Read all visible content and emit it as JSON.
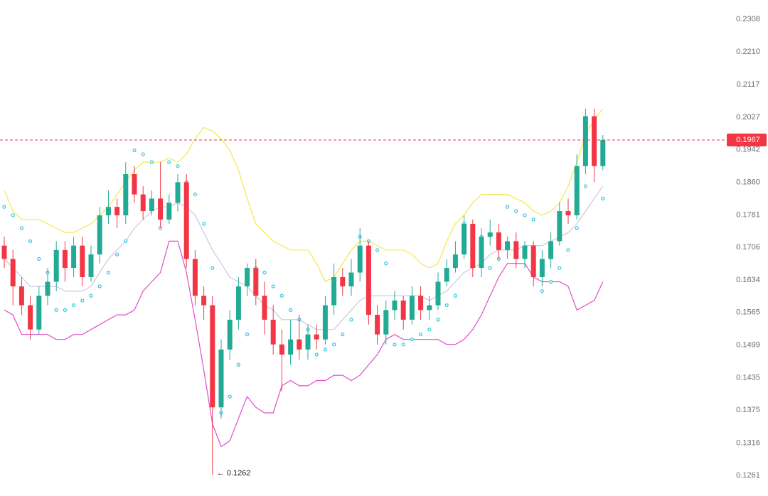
{
  "chart_data": {
    "type": "candlestick",
    "log_scale": true,
    "grid": false,
    "up_color": "#22ab94",
    "down_color": "#f23645",
    "open": [
      0.171,
      0.168,
      0.162,
      0.158,
      0.153,
      0.16,
      0.163,
      0.17,
      0.166,
      0.171,
      0.164,
      0.169,
      0.178,
      0.18,
      0.178,
      0.188,
      0.183,
      0.179,
      0.182,
      0.177,
      0.181,
      0.186,
      0.168,
      0.16,
      0.158,
      0.138,
      0.149,
      0.155,
      0.162,
      0.166,
      0.16,
      0.155,
      0.15,
      0.148,
      0.151,
      0.149,
      0.152,
      0.151,
      0.158,
      0.164,
      0.162,
      0.165,
      0.171,
      0.156,
      0.152,
      0.157,
      0.159,
      0.155,
      0.16,
      0.157,
      0.158,
      0.163,
      0.166,
      0.169,
      0.176,
      0.166,
      0.173,
      0.174,
      0.17,
      0.172,
      0.168,
      0.171,
      0.164,
      0.168,
      0.172,
      0.179,
      0.178,
      0.19,
      0.203,
      0.19
    ],
    "high": [
      0.173,
      0.17,
      0.164,
      0.16,
      0.162,
      0.166,
      0.172,
      0.172,
      0.173,
      0.173,
      0.171,
      0.18,
      0.184,
      0.182,
      0.191,
      0.19,
      0.185,
      0.184,
      0.191,
      0.183,
      0.188,
      0.188,
      0.17,
      0.162,
      0.16,
      0.151,
      0.157,
      0.164,
      0.167,
      0.168,
      0.163,
      0.158,
      0.153,
      0.155,
      0.156,
      0.154,
      0.154,
      0.16,
      0.167,
      0.166,
      0.168,
      0.175,
      0.172,
      0.158,
      0.159,
      0.161,
      0.16,
      0.162,
      0.162,
      0.16,
      0.165,
      0.168,
      0.172,
      0.178,
      0.177,
      0.175,
      0.177,
      0.176,
      0.173,
      0.174,
      0.172,
      0.172,
      0.17,
      0.174,
      0.181,
      0.182,
      0.193,
      0.205,
      0.205,
      0.198
    ],
    "low": [
      0.166,
      0.158,
      0.156,
      0.151,
      0.152,
      0.158,
      0.161,
      0.163,
      0.164,
      0.162,
      0.163,
      0.167,
      0.176,
      0.175,
      0.176,
      0.181,
      0.177,
      0.178,
      0.175,
      0.176,
      0.179,
      0.166,
      0.158,
      0.155,
      0.1262,
      0.136,
      0.147,
      0.153,
      0.16,
      0.158,
      0.152,
      0.148,
      0.141,
      0.146,
      0.147,
      0.147,
      0.149,
      0.15,
      0.156,
      0.16,
      0.16,
      0.163,
      0.154,
      0.15,
      0.15,
      0.155,
      0.153,
      0.154,
      0.155,
      0.155,
      0.157,
      0.162,
      0.165,
      0.168,
      0.164,
      0.164,
      0.171,
      0.168,
      0.168,
      0.166,
      0.166,
      0.162,
      0.162,
      0.166,
      0.171,
      0.176,
      0.177,
      0.188,
      0.186,
      0.189
    ],
    "close": [
      0.168,
      0.162,
      0.158,
      0.153,
      0.16,
      0.163,
      0.17,
      0.166,
      0.171,
      0.164,
      0.169,
      0.178,
      0.18,
      0.178,
      0.188,
      0.183,
      0.179,
      0.182,
      0.177,
      0.181,
      0.186,
      0.168,
      0.16,
      0.158,
      0.138,
      0.149,
      0.155,
      0.162,
      0.166,
      0.16,
      0.155,
      0.15,
      0.148,
      0.151,
      0.149,
      0.152,
      0.151,
      0.158,
      0.164,
      0.162,
      0.165,
      0.171,
      0.156,
      0.152,
      0.157,
      0.159,
      0.155,
      0.16,
      0.157,
      0.158,
      0.163,
      0.166,
      0.169,
      0.176,
      0.166,
      0.173,
      0.174,
      0.17,
      0.172,
      0.168,
      0.171,
      0.164,
      0.168,
      0.172,
      0.179,
      0.178,
      0.19,
      0.203,
      0.19,
      0.1967
    ],
    "overlays": [
      {
        "style": "line",
        "color": "#f2e84b",
        "values": [
          0.184,
          0.179,
          0.177,
          0.177,
          0.177,
          0.176,
          0.175,
          0.174,
          0.174,
          0.175,
          0.176,
          0.178,
          0.18,
          0.183,
          0.186,
          0.189,
          0.191,
          0.191,
          0.191,
          0.192,
          0.191,
          0.193,
          0.197,
          0.2,
          0.199,
          0.197,
          0.194,
          0.189,
          0.182,
          0.176,
          0.174,
          0.172,
          0.171,
          0.17,
          0.17,
          0.17,
          0.167,
          0.163,
          0.164,
          0.167,
          0.17,
          0.172,
          0.172,
          0.171,
          0.17,
          0.17,
          0.17,
          0.169,
          0.167,
          0.166,
          0.167,
          0.172,
          0.176,
          0.178,
          0.181,
          0.183,
          0.183,
          0.183,
          0.183,
          0.182,
          0.181,
          0.179,
          0.178,
          0.179,
          0.181,
          0.185,
          0.191,
          0.198,
          0.202,
          0.205
        ]
      },
      {
        "style": "line",
        "color": "#cfc6dc",
        "values": [
          0.168,
          0.166,
          0.164,
          0.162,
          0.162,
          0.162,
          0.162,
          0.161,
          0.161,
          0.161,
          0.162,
          0.165,
          0.168,
          0.17,
          0.172,
          0.175,
          0.177,
          0.179,
          0.18,
          0.18,
          0.181,
          0.18,
          0.178,
          0.174,
          0.17,
          0.167,
          0.164,
          0.163,
          0.162,
          0.16,
          0.158,
          0.157,
          0.155,
          0.155,
          0.155,
          0.154,
          0.153,
          0.153,
          0.153,
          0.155,
          0.157,
          0.159,
          0.16,
          0.16,
          0.16,
          0.16,
          0.16,
          0.16,
          0.16,
          0.159,
          0.16,
          0.161,
          0.163,
          0.165,
          0.166,
          0.167,
          0.169,
          0.17,
          0.17,
          0.17,
          0.171,
          0.171,
          0.171,
          0.172,
          0.173,
          0.174,
          0.176,
          0.179,
          0.182,
          0.185
        ]
      },
      {
        "style": "line",
        "color": "#e04ccb",
        "values": [
          0.157,
          0.156,
          0.152,
          0.152,
          0.152,
          0.152,
          0.151,
          0.151,
          0.152,
          0.152,
          0.153,
          0.154,
          0.155,
          0.156,
          0.156,
          0.157,
          0.161,
          0.163,
          0.165,
          0.172,
          0.172,
          0.165,
          0.155,
          0.145,
          0.135,
          0.131,
          0.132,
          0.136,
          0.14,
          0.138,
          0.137,
          0.137,
          0.142,
          0.143,
          0.142,
          0.142,
          0.143,
          0.143,
          0.144,
          0.144,
          0.143,
          0.144,
          0.146,
          0.148,
          0.151,
          0.152,
          0.151,
          0.151,
          0.151,
          0.151,
          0.151,
          0.15,
          0.15,
          0.151,
          0.153,
          0.156,
          0.16,
          0.164,
          0.167,
          0.167,
          0.167,
          0.164,
          0.163,
          0.163,
          0.163,
          0.162,
          0.157,
          0.158,
          0.159,
          0.163
        ]
      },
      {
        "style": "dots",
        "color": "#40c8e0",
        "values": [
          0.18,
          0.178,
          0.175,
          0.172,
          0.168,
          0.165,
          0.157,
          0.157,
          0.158,
          0.159,
          0.16,
          0.162,
          0.165,
          0.169,
          0.172,
          0.194,
          0.193,
          0.191,
          0.175,
          0.191,
          0.19,
          0.186,
          0.183,
          0.176,
          0.166,
          0.137,
          0.14,
          0.146,
          0.152,
          0.166,
          0.165,
          0.162,
          0.16,
          0.157,
          0.155,
          0.153,
          0.148,
          0.149,
          0.15,
          0.152,
          0.155,
          0.173,
          0.172,
          0.17,
          0.167,
          0.15,
          0.15,
          0.151,
          0.152,
          0.153,
          0.155,
          0.158,
          0.16,
          0.176,
          0.175,
          0.173,
          0.166,
          0.168,
          0.18,
          0.179,
          0.178,
          0.177,
          0.161,
          0.163,
          0.166,
          0.17,
          0.175,
          0.185,
          0.192,
          0.182
        ]
      }
    ],
    "last_price": 0.1967,
    "low_annotation": {
      "value": 0.1262,
      "label": "← 0.1262"
    },
    "ylim": [
      0.1227,
      0.2368
    ],
    "yticks": [
      0.2308,
      {
        "value": 0.221,
        "label": "0.2210"
      },
      0.2117,
      0.2027,
      0.1942,
      {
        "value": 0.186,
        "label": "0.1860"
      },
      0.1781,
      0.1706,
      0.1634,
      0.1565,
      0.1499,
      0.1435,
      0.1375,
      0.1316,
      0.1261
    ]
  }
}
